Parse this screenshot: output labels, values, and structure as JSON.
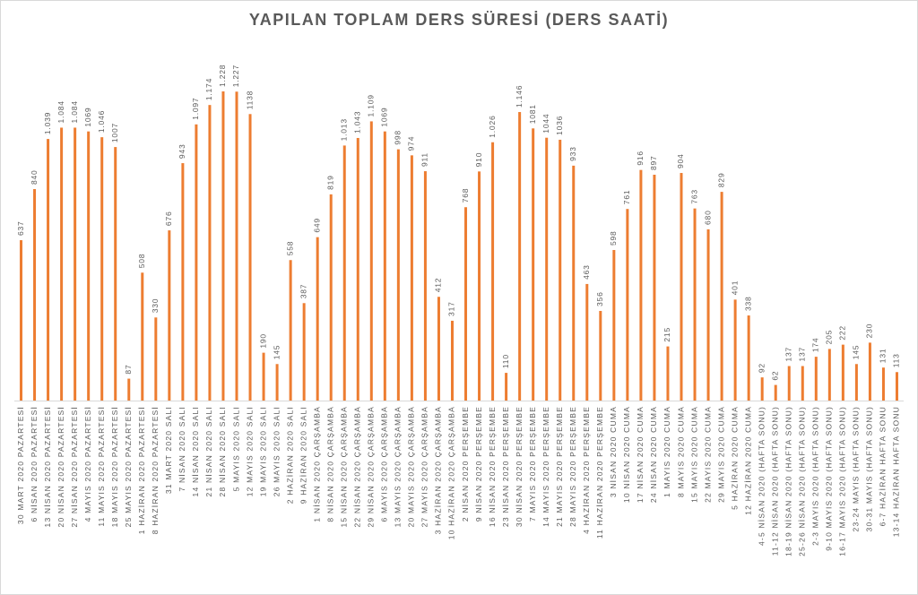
{
  "chart_data": {
    "type": "bar",
    "title": "YAPILAN TOPLAM DERS SÜRESİ (DERS SAATİ)",
    "color": "#ED7D31",
    "categories": [
      "30 MART 2020 PAZARTESİ",
      "6 NİSAN 2020 PAZARTESİ",
      "13 NİSAN 2020 PAZARTESİ",
      "20 NİSAN 2020 PAZARTESİ",
      "27 NİSAN 2020 PAZARTESİ",
      "4 MAYIS 2020 PAZARTESİ",
      "11 MAYIS 2020 PAZARTESİ",
      "18 MAYIS 2020 PAZARTESİ",
      "25 MAYIS 2020 PAZARTESİ",
      "1 HAZİRAN 2020 PAZARTESİ",
      "8 HAZİRAN 2020 PAZARTESİ",
      "31 MART 2020 SALI",
      "7 NİSAN 2020 SALI",
      "14 NİSAN 2020 SALI",
      "21 NİSAN 2020 SALI",
      "28 NİSAN 2020 SALI",
      "5 MAYIS 2020 SALI",
      "12 MAYIS 2020 SALI",
      "19 MAYIS 2020 SALI",
      "26 MAYIS 2020 SALI",
      "2 HAZİRAN 2020 SALI",
      "9 HAZİRAN 2020 SALI",
      "1 NİSAN 2020 ÇARŞAMBA",
      "8 NİSAN 2020 ÇARŞAMBA",
      "15 NİSAN 2020 ÇARŞAMBA",
      "22 NİSAN 2020 ÇARŞAMBA",
      "29 NİSAN 2020 ÇARŞAMBA",
      "6 MAYIS 2020 ÇARŞAMBA",
      "13 MAYIS 2020 ÇARŞAMBA",
      "20 MAYIS 2020 ÇARŞAMBA",
      "27 MAYIS 2020 ÇARŞAMBA",
      "3 HAZİRAN 2020 ÇARŞAMBA",
      "10 HAZİRAN 2020 ÇARŞAMBA",
      "2 NİSAN 2020 PERŞEMBE",
      "9 NİSAN 2020 PERŞEMBE",
      "16 NİSAN 2020 PERŞEMBE",
      "23 NİSAN 2020 PERŞEMBE",
      "30 NİSAN 2020 PERŞEMBE",
      "7 MAYIS 2020 PERŞEMBE",
      "14 MAYIS 2020 PERŞEMBE",
      "21 MAYIS 2020 PERŞEMBE",
      "28 MAYIS 2020 PERŞEMBE",
      "4 HAZİRAN 2020 PERŞEMBE",
      "11 HAZİRAN 2020 PERŞEMBE",
      "3 NİSAN 2020 CUMA",
      "10 NİSAN 2020 CUMA",
      "17 NİSAN 2020 CUMA",
      "24 NİSAN 2020 CUMA",
      "1 MAYIS 2020 CUMA",
      "8 MAYIS 2020 CUMA",
      "15 MAYIS 2020 CUMA",
      "22 MAYIS 2020 CUMA",
      "29 MAYIS 2020 CUMA",
      "5 HAZİRAN 2020 CUMA",
      "12 HAZİRAN 2020 CUMA",
      "4-5 NİSAN 2020 (HAFTA SONU)",
      "11-12 NİSAN 2020 (HAFTA SONU)",
      "18-19 NİSAN 2020 (HAFTA SONU)",
      "25-26 NİSAN 2020 (HAFTA SONU)",
      "2-3 MAYIS 2020 (HAFTA SONU)",
      "9-10 MAYIS 2020 (HAFTA SONU)",
      "16-17 MAYIS 2020 (HAFTA SONU)",
      "23-24 MAYIS (HAFTA SONU)",
      "30-31 MAYIS (HAFTA SONU)",
      "6-7 HAZİRAN HAFTA SONU",
      "13-14 HAZİRAN HAFTA SONU"
    ],
    "values": [
      637,
      840,
      1039,
      1084,
      1084,
      1069,
      1046,
      1007,
      87,
      508,
      330,
      676,
      943,
      1097,
      1174,
      1228,
      1227,
      1138,
      190,
      145,
      558,
      387,
      649,
      819,
      1013,
      1043,
      1109,
      1069,
      998,
      974,
      911,
      412,
      317,
      768,
      910,
      1026,
      110,
      1146,
      1081,
      1044,
      1036,
      933,
      463,
      356,
      598,
      761,
      916,
      897,
      215,
      904,
      763,
      680,
      829,
      401,
      338,
      92,
      62,
      137,
      137,
      174,
      205,
      222,
      145,
      230,
      131,
      113
    ],
    "value_labels": [
      "637",
      "840",
      "1.039",
      "1.084",
      "1.084",
      "1069",
      "1.046",
      "1007",
      "87",
      "508",
      "330",
      "676",
      "943",
      "1.097",
      "1.174",
      "1.228",
      "1.227",
      "1138",
      "190",
      "145",
      "558",
      "387",
      "649",
      "819",
      "1.013",
      "1.043",
      "1.109",
      "1069",
      "998",
      "974",
      "911",
      "412",
      "317",
      "768",
      "910",
      "1.026",
      "110",
      "1.146",
      "1081",
      "1044",
      "1036",
      "933",
      "463",
      "356",
      "598",
      "761",
      "916",
      "897",
      "215",
      "904",
      "763",
      "680",
      "829",
      "401",
      "338",
      "92",
      "62",
      "137",
      "137",
      "174",
      "205",
      "222",
      "145",
      "230",
      "131",
      "113"
    ]
  }
}
